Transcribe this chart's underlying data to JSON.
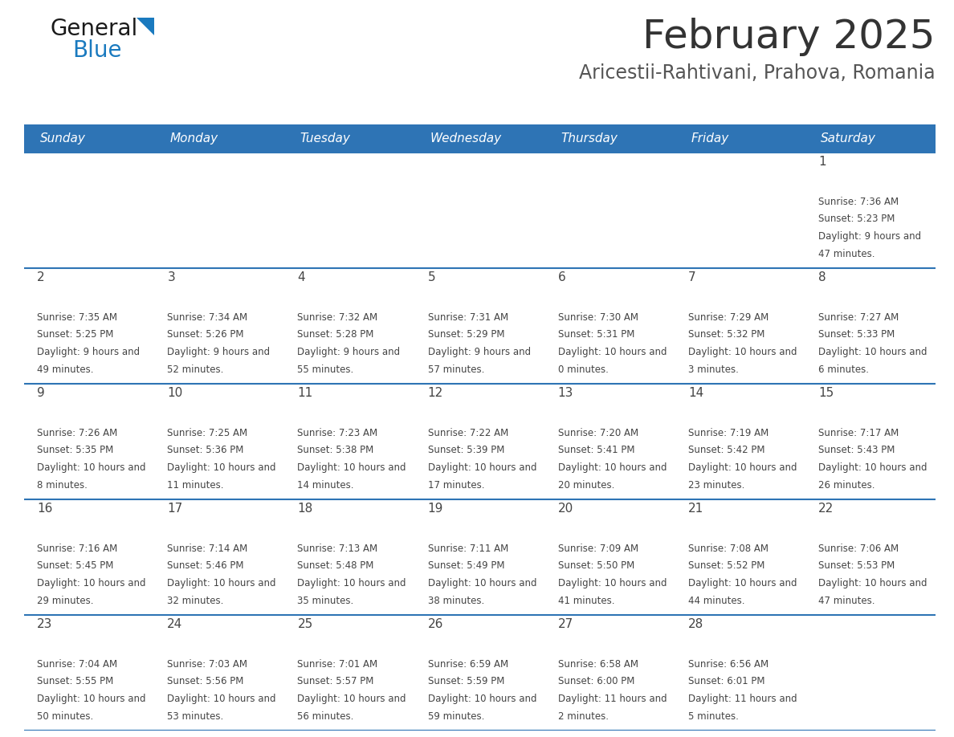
{
  "title": "February 2025",
  "subtitle": "Aricestii-Rahtivani, Prahova, Romania",
  "days_of_week": [
    "Sunday",
    "Monday",
    "Tuesday",
    "Wednesday",
    "Thursday",
    "Friday",
    "Saturday"
  ],
  "header_bg": "#2e74b5",
  "header_text_color": "#ffffff",
  "cell_bg": "#ffffff",
  "row_line_color": "#2e74b5",
  "day_number_color": "#444444",
  "text_color": "#444444",
  "title_color": "#333333",
  "subtitle_color": "#555555",
  "general_text_color": "#1a1a1a",
  "general_blue_color": "#1a7abf",
  "calendar_data": [
    {
      "day": 1,
      "col": 6,
      "row": 0,
      "sunrise": "7:36 AM",
      "sunset": "5:23 PM",
      "daylight": "9 hours and 47 minutes"
    },
    {
      "day": 2,
      "col": 0,
      "row": 1,
      "sunrise": "7:35 AM",
      "sunset": "5:25 PM",
      "daylight": "9 hours and 49 minutes"
    },
    {
      "day": 3,
      "col": 1,
      "row": 1,
      "sunrise": "7:34 AM",
      "sunset": "5:26 PM",
      "daylight": "9 hours and 52 minutes"
    },
    {
      "day": 4,
      "col": 2,
      "row": 1,
      "sunrise": "7:32 AM",
      "sunset": "5:28 PM",
      "daylight": "9 hours and 55 minutes"
    },
    {
      "day": 5,
      "col": 3,
      "row": 1,
      "sunrise": "7:31 AM",
      "sunset": "5:29 PM",
      "daylight": "9 hours and 57 minutes"
    },
    {
      "day": 6,
      "col": 4,
      "row": 1,
      "sunrise": "7:30 AM",
      "sunset": "5:31 PM",
      "daylight": "10 hours and 0 minutes"
    },
    {
      "day": 7,
      "col": 5,
      "row": 1,
      "sunrise": "7:29 AM",
      "sunset": "5:32 PM",
      "daylight": "10 hours and 3 minutes"
    },
    {
      "day": 8,
      "col": 6,
      "row": 1,
      "sunrise": "7:27 AM",
      "sunset": "5:33 PM",
      "daylight": "10 hours and 6 minutes"
    },
    {
      "day": 9,
      "col": 0,
      "row": 2,
      "sunrise": "7:26 AM",
      "sunset": "5:35 PM",
      "daylight": "10 hours and 8 minutes"
    },
    {
      "day": 10,
      "col": 1,
      "row": 2,
      "sunrise": "7:25 AM",
      "sunset": "5:36 PM",
      "daylight": "10 hours and 11 minutes"
    },
    {
      "day": 11,
      "col": 2,
      "row": 2,
      "sunrise": "7:23 AM",
      "sunset": "5:38 PM",
      "daylight": "10 hours and 14 minutes"
    },
    {
      "day": 12,
      "col": 3,
      "row": 2,
      "sunrise": "7:22 AM",
      "sunset": "5:39 PM",
      "daylight": "10 hours and 17 minutes"
    },
    {
      "day": 13,
      "col": 4,
      "row": 2,
      "sunrise": "7:20 AM",
      "sunset": "5:41 PM",
      "daylight": "10 hours and 20 minutes"
    },
    {
      "day": 14,
      "col": 5,
      "row": 2,
      "sunrise": "7:19 AM",
      "sunset": "5:42 PM",
      "daylight": "10 hours and 23 minutes"
    },
    {
      "day": 15,
      "col": 6,
      "row": 2,
      "sunrise": "7:17 AM",
      "sunset": "5:43 PM",
      "daylight": "10 hours and 26 minutes"
    },
    {
      "day": 16,
      "col": 0,
      "row": 3,
      "sunrise": "7:16 AM",
      "sunset": "5:45 PM",
      "daylight": "10 hours and 29 minutes"
    },
    {
      "day": 17,
      "col": 1,
      "row": 3,
      "sunrise": "7:14 AM",
      "sunset": "5:46 PM",
      "daylight": "10 hours and 32 minutes"
    },
    {
      "day": 18,
      "col": 2,
      "row": 3,
      "sunrise": "7:13 AM",
      "sunset": "5:48 PM",
      "daylight": "10 hours and 35 minutes"
    },
    {
      "day": 19,
      "col": 3,
      "row": 3,
      "sunrise": "7:11 AM",
      "sunset": "5:49 PM",
      "daylight": "10 hours and 38 minutes"
    },
    {
      "day": 20,
      "col": 4,
      "row": 3,
      "sunrise": "7:09 AM",
      "sunset": "5:50 PM",
      "daylight": "10 hours and 41 minutes"
    },
    {
      "day": 21,
      "col": 5,
      "row": 3,
      "sunrise": "7:08 AM",
      "sunset": "5:52 PM",
      "daylight": "10 hours and 44 minutes"
    },
    {
      "day": 22,
      "col": 6,
      "row": 3,
      "sunrise": "7:06 AM",
      "sunset": "5:53 PM",
      "daylight": "10 hours and 47 minutes"
    },
    {
      "day": 23,
      "col": 0,
      "row": 4,
      "sunrise": "7:04 AM",
      "sunset": "5:55 PM",
      "daylight": "10 hours and 50 minutes"
    },
    {
      "day": 24,
      "col": 1,
      "row": 4,
      "sunrise": "7:03 AM",
      "sunset": "5:56 PM",
      "daylight": "10 hours and 53 minutes"
    },
    {
      "day": 25,
      "col": 2,
      "row": 4,
      "sunrise": "7:01 AM",
      "sunset": "5:57 PM",
      "daylight": "10 hours and 56 minutes"
    },
    {
      "day": 26,
      "col": 3,
      "row": 4,
      "sunrise": "6:59 AM",
      "sunset": "5:59 PM",
      "daylight": "10 hours and 59 minutes"
    },
    {
      "day": 27,
      "col": 4,
      "row": 4,
      "sunrise": "6:58 AM",
      "sunset": "6:00 PM",
      "daylight": "11 hours and 2 minutes"
    },
    {
      "day": 28,
      "col": 5,
      "row": 4,
      "sunrise": "6:56 AM",
      "sunset": "6:01 PM",
      "daylight": "11 hours and 5 minutes"
    }
  ]
}
